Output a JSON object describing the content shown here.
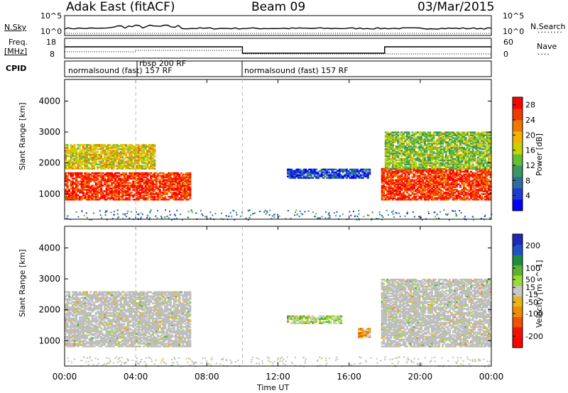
{
  "header": {
    "site": "Adak East (fitACF)",
    "beam": "Beam 09",
    "date": "03/Mar/2015"
  },
  "left_labels": {
    "nsky": "N.Sky",
    "freq": "Freq.",
    "freq_unit": "[MHz]",
    "cpid": "CPID"
  },
  "right_labels": {
    "nsearch": "N.Search",
    "nave": "Nave"
  },
  "strip_ticks": {
    "noise_left": [
      "10^5",
      "10^0"
    ],
    "noise_right": [
      "10^5",
      "10^0"
    ],
    "freq_left": [
      "18",
      "8"
    ],
    "freq_right": [
      "60",
      "0"
    ]
  },
  "cpid": {
    "segments": [
      "normalsound (fast) 157 RF",
      "rbsp 200 RF",
      "normalsound (fast) 157 RF"
    ]
  },
  "colors": {
    "power": [
      "#0000ff",
      "#1e3cd2",
      "#2d6e9b",
      "#3c9664",
      "#64be32",
      "#c8d200",
      "#f0b400",
      "#f07800",
      "#f03c00",
      "#ff0000"
    ],
    "velocity": [
      "#1e28b4",
      "#1e50c8",
      "#1e8c3c",
      "#5ab432",
      "#9bdc32",
      "#c8c8c8",
      "#e6b41e",
      "#f08c00",
      "#f05000",
      "#f01400",
      "#ff0000"
    ],
    "ground": "#bebebe"
  },
  "chart_data": [
    {
      "type": "heatmap",
      "panel": "power",
      "xlabel": "",
      "ylabel": "Slant Range [km]",
      "x_ticks": [
        "00:00",
        "04:00",
        "08:00",
        "12:00",
        "16:00",
        "20:00",
        "00:00"
      ],
      "y_ticks": [
        1000,
        2000,
        3000,
        4000
      ],
      "xlim_hours": [
        0,
        24
      ],
      "ylim_km": [
        180,
        4700
      ],
      "colorbar": {
        "label": "Power [dB]",
        "ticks": [
          4,
          8,
          12,
          16,
          20,
          24,
          28
        ],
        "range": [
          0,
          30
        ]
      },
      "echo_regions": [
        {
          "t_start": 0.0,
          "t_end": 7.0,
          "range_lo": 800,
          "range_hi": 1700,
          "level": 26
        },
        {
          "t_start": 0.0,
          "t_end": 5.0,
          "range_lo": 1800,
          "range_hi": 2600,
          "level": 18
        },
        {
          "t_start": 12.5,
          "t_end": 17.2,
          "range_lo": 1500,
          "range_hi": 1800,
          "level": 5
        },
        {
          "t_start": 17.8,
          "t_end": 24.0,
          "range_lo": 800,
          "range_hi": 1800,
          "level": 26
        },
        {
          "t_start": 18.0,
          "t_end": 24.0,
          "range_lo": 1800,
          "range_hi": 3000,
          "level": 14
        }
      ]
    },
    {
      "type": "heatmap",
      "panel": "velocity",
      "xlabel": "Time UT",
      "ylabel": "Slant Range [km]",
      "x_ticks": [
        "00:00",
        "04:00",
        "08:00",
        "12:00",
        "16:00",
        "20:00",
        "00:00"
      ],
      "y_ticks": [
        1000,
        2000,
        3000,
        4000
      ],
      "xlim_hours": [
        0,
        24
      ],
      "ylim_km": [
        180,
        4700
      ],
      "colorbar": {
        "label": "Velocity [m s^-1]",
        "ticks": [
          200,
          100,
          50,
          15,
          -15,
          -50,
          -100,
          -200
        ],
        "range": [
          -250,
          250
        ]
      },
      "echo_regions": [
        {
          "t_start": 0.0,
          "t_end": 7.0,
          "range_lo": 800,
          "range_hi": 2600,
          "velocity": 0
        },
        {
          "t_start": 12.5,
          "t_end": 15.5,
          "range_lo": 1550,
          "range_hi": 1800,
          "velocity": 40
        },
        {
          "t_start": 16.5,
          "t_end": 17.2,
          "range_lo": 1100,
          "range_hi": 1400,
          "velocity": -60
        },
        {
          "t_start": 17.8,
          "t_end": 24.0,
          "range_lo": 800,
          "range_hi": 3000,
          "velocity": 0
        }
      ]
    }
  ]
}
